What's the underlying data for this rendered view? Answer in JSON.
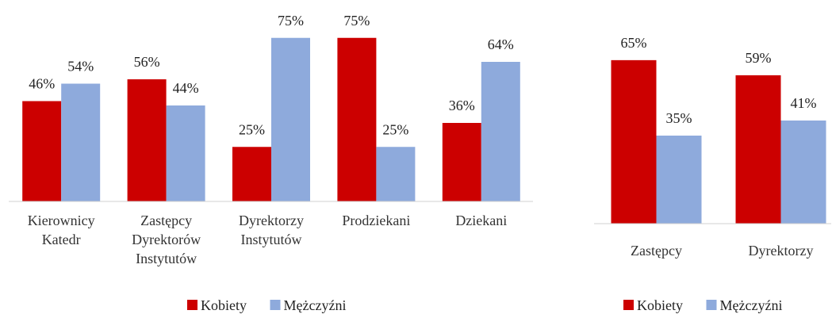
{
  "chart_data": [
    {
      "type": "bar",
      "categories": [
        "Kierownicy Katedr",
        "Zastępcy Dyrektorów Instytutów",
        "Dyrektorzy Instytutów",
        "Prodziekani",
        "Dziekani"
      ],
      "series": [
        {
          "name": "Kobiety",
          "color": "#cc0000",
          "values": [
            46,
            56,
            25,
            75,
            36
          ],
          "value_labels": [
            "46%",
            "56%",
            "25%",
            "75%",
            "36%"
          ]
        },
        {
          "name": "Mężczyźni",
          "color": "#8eaadc",
          "values": [
            54,
            44,
            75,
            25,
            64
          ],
          "value_labels": [
            "54%",
            "44%",
            "75%",
            "25%",
            "64%"
          ]
        }
      ],
      "ylim": [
        0,
        80
      ],
      "legend": "bottom"
    },
    {
      "type": "bar",
      "categories": [
        "Zastępcy",
        "Dyrektorzy"
      ],
      "series": [
        {
          "name": "Kobiety",
          "color": "#cc0000",
          "values": [
            65,
            59
          ],
          "value_labels": [
            "65%",
            "59%"
          ]
        },
        {
          "name": "Mężczyźni",
          "color": "#8eaadc",
          "values": [
            35,
            41
          ],
          "value_labels": [
            "35%",
            "41%"
          ]
        }
      ],
      "ylim": [
        0,
        70
      ],
      "legend": "bottom"
    }
  ]
}
